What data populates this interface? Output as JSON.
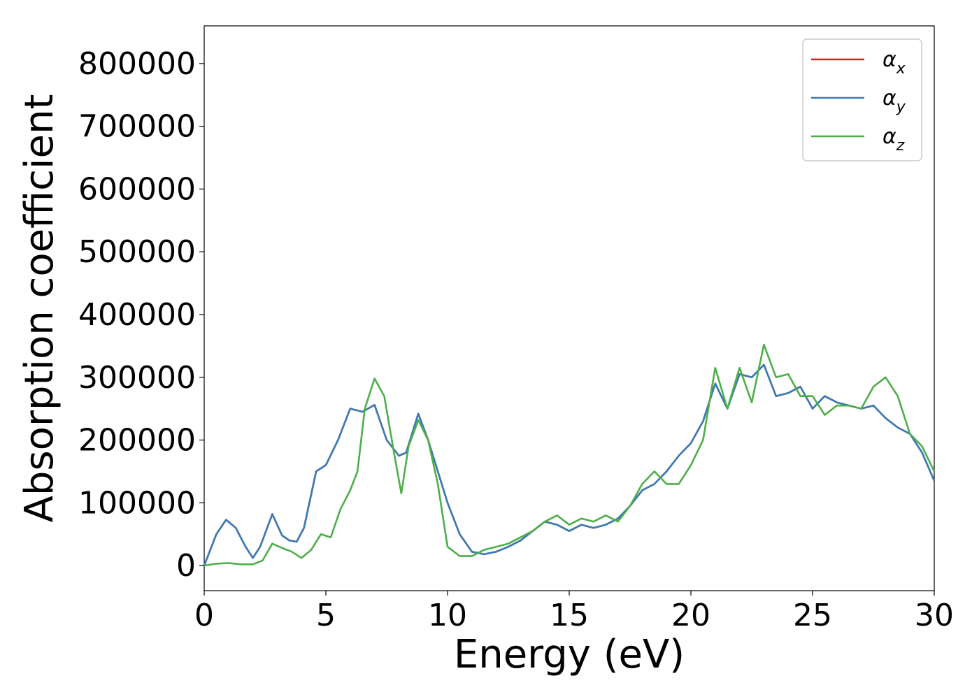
{
  "chart_data": {
    "type": "line",
    "xlabel": "Energy (eV)",
    "ylabel": "Absorption coefficient",
    "xlim": [
      0,
      30
    ],
    "ylim": [
      -40000,
      860000
    ],
    "xticks": [
      "0",
      "5",
      "10",
      "15",
      "20",
      "25",
      "30"
    ],
    "yticks": [
      "0",
      "100000",
      "200000",
      "300000",
      "400000",
      "500000",
      "600000",
      "700000",
      "800000"
    ],
    "legend_position": "top-right",
    "grid": false,
    "series": [
      {
        "name": "α_x",
        "legend_base": "α",
        "legend_sub": "x",
        "color": "#e41a1c",
        "x": [
          0,
          0.2,
          0.5,
          0.9,
          1.3,
          1.7,
          2.0,
          2.3,
          2.8,
          3.2,
          3.5,
          3.8,
          4.1,
          4.6,
          5.0,
          5.5,
          6.0,
          6.5,
          7.0,
          7.5,
          8.0,
          8.3,
          8.8,
          9.2,
          9.6,
          10.0,
          10.5,
          11.0,
          11.5,
          12.0,
          12.5,
          13.0,
          13.5,
          14.0,
          14.5,
          15.0,
          15.5,
          16.0,
          16.5,
          17.0,
          17.5,
          18.0,
          18.5,
          19.0,
          19.5,
          20.0,
          20.5,
          21.0,
          21.5,
          22.0,
          22.5,
          23.0,
          23.5,
          24.0,
          24.5,
          25.0,
          25.5,
          26.0,
          26.5,
          27.0,
          27.5,
          28.0,
          28.5,
          29.0,
          29.5,
          30.0
        ],
        "values": [
          0,
          20000,
          50000,
          73000,
          60000,
          30000,
          12000,
          30000,
          82000,
          48000,
          40000,
          38000,
          60000,
          150000,
          160000,
          200000,
          250000,
          245000,
          256000,
          200000,
          175000,
          180000,
          242000,
          200000,
          150000,
          100000,
          50000,
          22000,
          18000,
          22000,
          30000,
          40000,
          55000,
          70000,
          65000,
          55000,
          65000,
          60000,
          65000,
          75000,
          95000,
          120000,
          130000,
          150000,
          175000,
          195000,
          230000,
          290000,
          250000,
          305000,
          300000,
          320000,
          270000,
          275000,
          285000,
          250000,
          270000,
          260000,
          255000,
          250000,
          255000,
          235000,
          220000,
          210000,
          180000,
          135000
        ]
      },
      {
        "name": "α_y",
        "legend_base": "α",
        "legend_sub": "y",
        "color": "#377eb8",
        "x": [
          0,
          0.2,
          0.5,
          0.9,
          1.3,
          1.7,
          2.0,
          2.3,
          2.8,
          3.2,
          3.5,
          3.8,
          4.1,
          4.6,
          5.0,
          5.5,
          6.0,
          6.5,
          7.0,
          7.5,
          8.0,
          8.3,
          8.8,
          9.2,
          9.6,
          10.0,
          10.5,
          11.0,
          11.5,
          12.0,
          12.5,
          13.0,
          13.5,
          14.0,
          14.5,
          15.0,
          15.5,
          16.0,
          16.5,
          17.0,
          17.5,
          18.0,
          18.5,
          19.0,
          19.5,
          20.0,
          20.5,
          21.0,
          21.5,
          22.0,
          22.5,
          23.0,
          23.5,
          24.0,
          24.5,
          25.0,
          25.5,
          26.0,
          26.5,
          27.0,
          27.5,
          28.0,
          28.5,
          29.0,
          29.5,
          30.0
        ],
        "values": [
          0,
          20000,
          50000,
          73000,
          60000,
          30000,
          12000,
          30000,
          82000,
          48000,
          40000,
          38000,
          60000,
          150000,
          160000,
          200000,
          250000,
          245000,
          256000,
          200000,
          175000,
          180000,
          242000,
          200000,
          150000,
          100000,
          50000,
          22000,
          18000,
          22000,
          30000,
          40000,
          55000,
          70000,
          65000,
          55000,
          65000,
          60000,
          65000,
          75000,
          95000,
          120000,
          130000,
          150000,
          175000,
          195000,
          230000,
          290000,
          250000,
          305000,
          300000,
          320000,
          270000,
          275000,
          285000,
          250000,
          270000,
          260000,
          255000,
          250000,
          255000,
          235000,
          220000,
          210000,
          180000,
          135000
        ]
      },
      {
        "name": "α_z",
        "legend_base": "α",
        "legend_sub": "z",
        "color": "#4daf4a",
        "x": [
          0,
          0.5,
          1.0,
          1.5,
          2.0,
          2.4,
          2.8,
          3.2,
          3.6,
          4.0,
          4.4,
          4.8,
          5.2,
          5.6,
          6.0,
          6.3,
          6.6,
          7.0,
          7.4,
          7.8,
          8.1,
          8.4,
          8.8,
          9.2,
          9.6,
          10.0,
          10.5,
          11.0,
          11.5,
          12.0,
          12.5,
          13.0,
          13.5,
          14.0,
          14.5,
          15.0,
          15.5,
          16.0,
          16.5,
          17.0,
          17.5,
          18.0,
          18.5,
          19.0,
          19.5,
          20.0,
          20.5,
          21.0,
          21.5,
          22.0,
          22.5,
          23.0,
          23.5,
          24.0,
          24.5,
          25.0,
          25.5,
          26.0,
          26.5,
          27.0,
          27.5,
          28.0,
          28.5,
          29.0,
          29.5,
          30.0
        ],
        "values": [
          0,
          3000,
          4000,
          2000,
          2000,
          8000,
          35000,
          28000,
          22000,
          12000,
          25000,
          50000,
          45000,
          90000,
          120000,
          150000,
          250000,
          298000,
          270000,
          180000,
          115000,
          190000,
          232000,
          200000,
          130000,
          30000,
          15000,
          15000,
          25000,
          30000,
          35000,
          45000,
          55000,
          70000,
          80000,
          65000,
          75000,
          70000,
          80000,
          70000,
          95000,
          130000,
          150000,
          130000,
          130000,
          160000,
          200000,
          315000,
          250000,
          315000,
          260000,
          352000,
          300000,
          305000,
          270000,
          270000,
          240000,
          255000,
          255000,
          250000,
          285000,
          300000,
          270000,
          210000,
          190000,
          150000
        ]
      }
    ]
  }
}
